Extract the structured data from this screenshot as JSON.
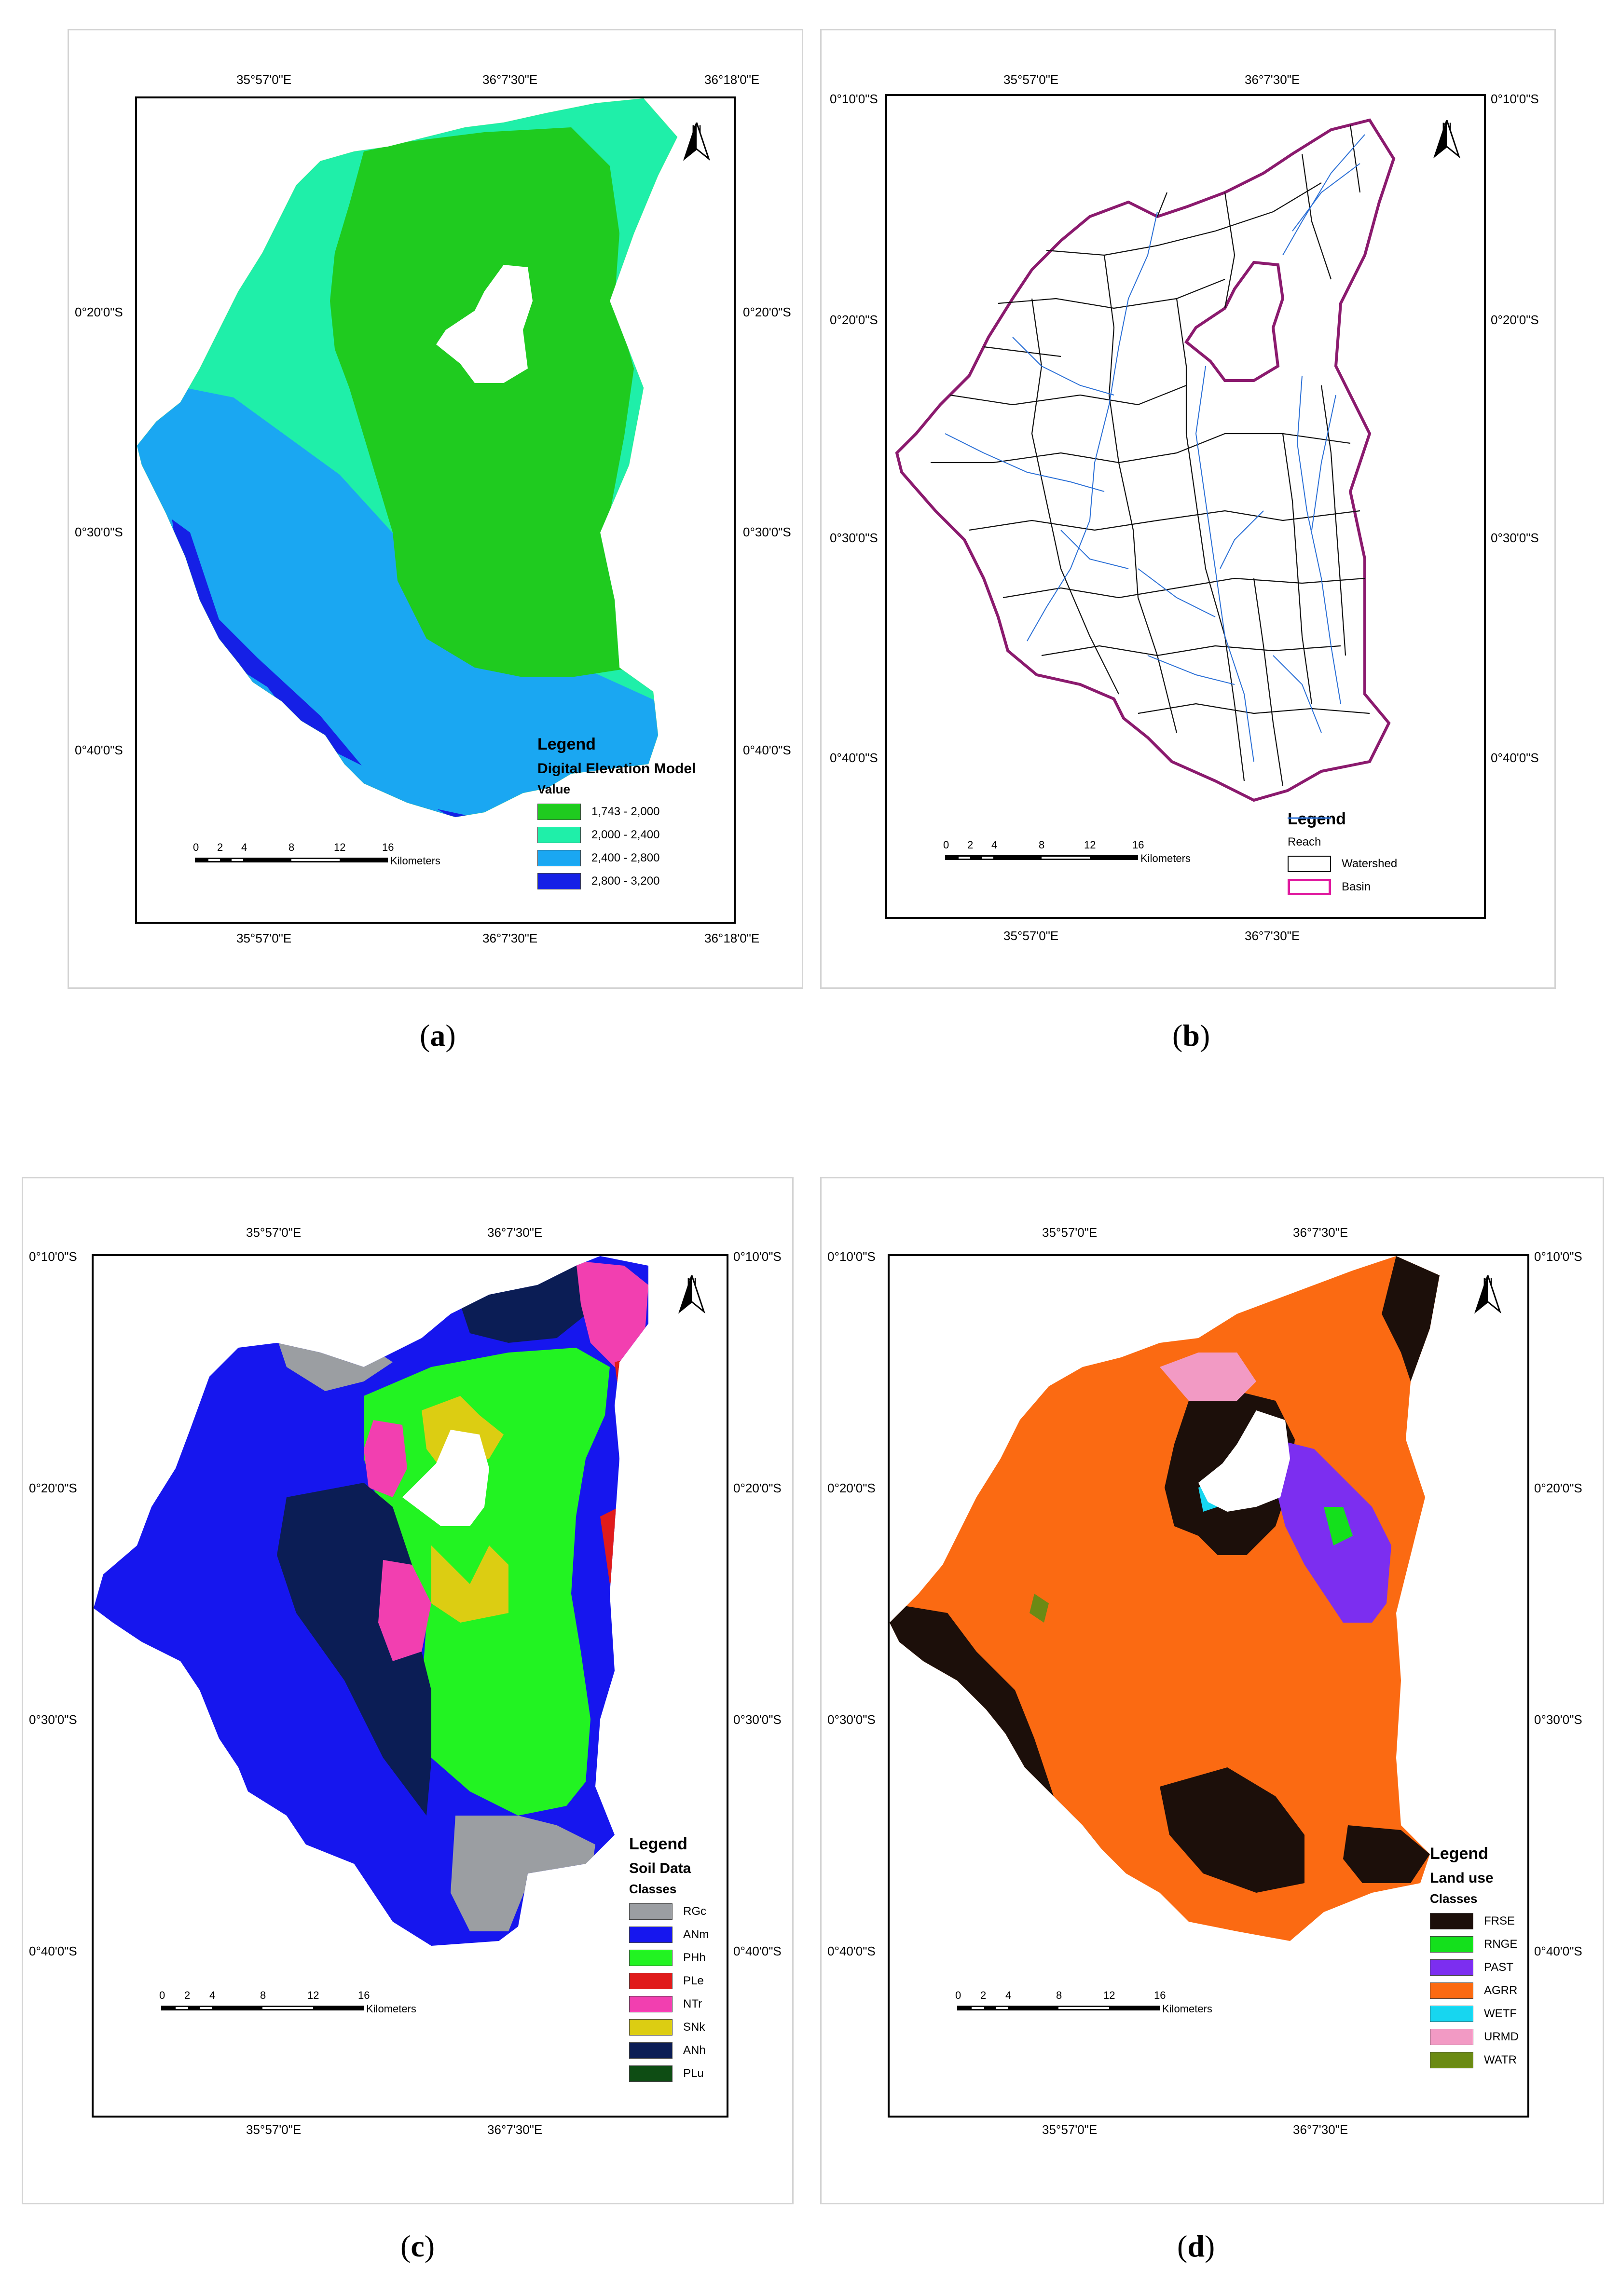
{
  "coords": {
    "lon_top": [
      "35°57'0\"E",
      "36°7'30\"E",
      "36°18'0\"E"
    ],
    "lon_bottom": [
      "35°57'0\"E",
      "36°7'30\"E",
      "36°18'0\"E"
    ],
    "lat_a": [
      "0°20'0\"S",
      "0°30'0\"S",
      "0°40'0\"S"
    ],
    "lat_b": [
      "0°10'0\"S",
      "0°20'0\"S",
      "0°30'0\"S",
      "0°40'0\"S"
    ]
  },
  "scale": {
    "ticks": [
      "0",
      "2",
      "4",
      "8",
      "12",
      "16"
    ],
    "unit": "Kilometers"
  },
  "north_label": "N",
  "panels": {
    "a": {
      "caption": "a",
      "legend_title": "Legend",
      "legend_subtitle": "Digital Elevation Model",
      "legend_sub2": "Value",
      "classes": [
        {
          "label": "1,743 - 2,000",
          "color": "#1fcb1f"
        },
        {
          "label": "2,000 - 2,400",
          "color": "#1fefa9"
        },
        {
          "label": "2,400 - 2,800",
          "color": "#1aa7f2"
        },
        {
          "label": "2,800 - 3,200",
          "color": "#1520e6"
        }
      ]
    },
    "b": {
      "caption": "b",
      "legend_title": "Legend",
      "classes": [
        {
          "label": "Reach",
          "color": "#2a6fd6"
        },
        {
          "label": "Watershed",
          "color": "#000000"
        },
        {
          "label": "Basin",
          "color": "#e0179e"
        }
      ]
    },
    "c": {
      "caption": "c",
      "legend_title": "Legend",
      "legend_subtitle": "Soil Data",
      "legend_sub2": "Classes",
      "classes": [
        {
          "label": "RGc",
          "color": "#9b9ea2"
        },
        {
          "label": "ANm",
          "color": "#1616ee"
        },
        {
          "label": "PHh",
          "color": "#22f322"
        },
        {
          "label": "PLe",
          "color": "#e01b1b"
        },
        {
          "label": "NTr",
          "color": "#f23fb0"
        },
        {
          "label": "SNk",
          "color": "#dccd12"
        },
        {
          "label": "ANh",
          "color": "#0b1d55"
        },
        {
          "label": "PLu",
          "color": "#0e4d14"
        }
      ]
    },
    "d": {
      "caption": "d",
      "legend_title": "Legend",
      "legend_subtitle": "Land use",
      "legend_sub2": "Classes",
      "classes": [
        {
          "label": "FRSE",
          "color": "#1c0f0a"
        },
        {
          "label": "RNGE",
          "color": "#14e01c"
        },
        {
          "label": "PAST",
          "color": "#7c2ef0"
        },
        {
          "label": "AGRR",
          "color": "#fb6a12"
        },
        {
          "label": "WETF",
          "color": "#17d6f0"
        },
        {
          "label": "URMD",
          "color": "#f29ac4"
        },
        {
          "label": "WATR",
          "color": "#6b8a14"
        }
      ]
    }
  }
}
